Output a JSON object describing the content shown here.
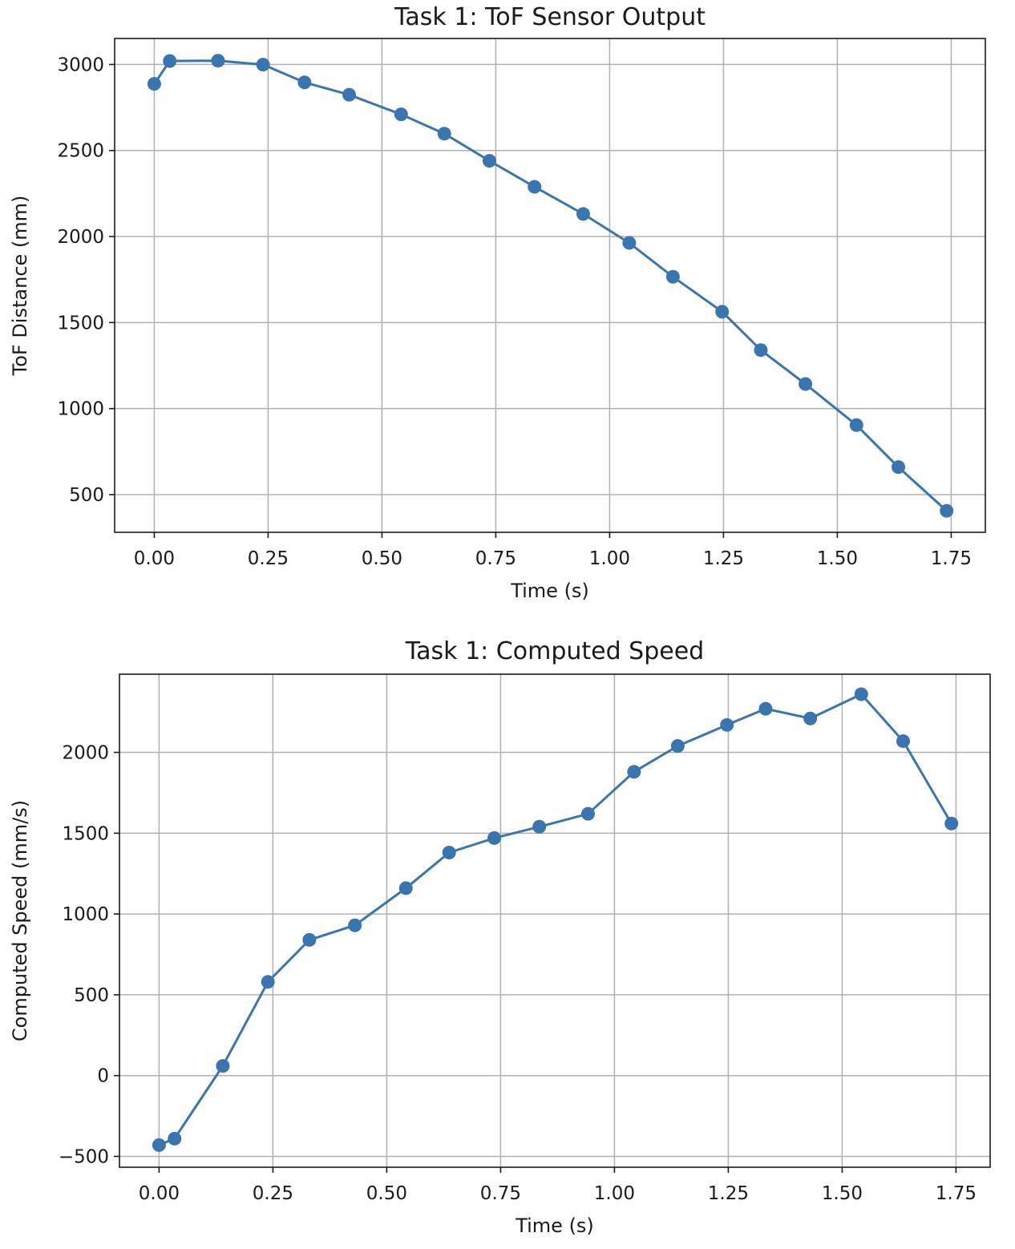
{
  "chart_data": [
    {
      "type": "line",
      "title": "Task 1: ToF Sensor Output",
      "xlabel": "Time (s)",
      "ylabel": "ToF Distance (mm)",
      "xlim": [
        -0.087,
        1.825
      ],
      "ylim": [
        281,
        3151
      ],
      "xticks": [
        0.0,
        0.25,
        0.5,
        0.75,
        1.0,
        1.25,
        1.5,
        1.75
      ],
      "xtick_labels": [
        "0.00",
        "0.25",
        "0.50",
        "0.75",
        "1.00",
        "1.25",
        "1.50",
        "1.75"
      ],
      "yticks": [
        500,
        1000,
        1500,
        2000,
        2500,
        3000
      ],
      "ytick_labels": [
        "500",
        "1000",
        "1500",
        "2000",
        "2500",
        "3000"
      ],
      "grid": true,
      "color": "#3a75b0",
      "series": [
        {
          "x": [
            0.0,
            0.034,
            0.14,
            0.239,
            0.33,
            0.428,
            0.542,
            0.637,
            0.736,
            0.835,
            0.942,
            1.043,
            1.139,
            1.247,
            1.332,
            1.43,
            1.542,
            1.634,
            1.74
          ],
          "y": [
            2887,
            3020,
            3022,
            2999,
            2896,
            2824,
            2710,
            2598,
            2440,
            2289,
            2131,
            1963,
            1766,
            1563,
            1340,
            1143,
            904,
            660,
            406
          ]
        }
      ]
    },
    {
      "type": "line",
      "title": "Task 1: Computed Speed",
      "xlabel": "Time (s)",
      "ylabel": "Computed Speed (mm/s)",
      "xlim": [
        -0.087,
        1.825
      ],
      "ylim": [
        -567,
        2484
      ],
      "xticks": [
        0.0,
        0.25,
        0.5,
        0.75,
        1.0,
        1.25,
        1.5,
        1.75
      ],
      "xtick_labels": [
        "0.00",
        "0.25",
        "0.50",
        "0.75",
        "1.00",
        "1.25",
        "1.50",
        "1.75"
      ],
      "yticks": [
        -500,
        0,
        500,
        1000,
        1500,
        2000
      ],
      "ytick_labels": [
        "−500",
        "0",
        "500",
        "1000",
        "1500",
        "2000"
      ],
      "grid": true,
      "color": "#3a75b0",
      "series": [
        {
          "x": [
            0.0,
            0.034,
            0.14,
            0.239,
            0.33,
            0.43,
            0.542,
            0.637,
            0.736,
            0.835,
            0.942,
            1.043,
            1.139,
            1.247,
            1.332,
            1.43,
            1.542,
            1.634,
            1.74
          ],
          "y": [
            -430,
            -390,
            60,
            580,
            840,
            930,
            1160,
            1380,
            1470,
            1540,
            1620,
            1880,
            2040,
            2170,
            2270,
            2210,
            2360,
            2070,
            1560
          ]
        }
      ]
    }
  ]
}
